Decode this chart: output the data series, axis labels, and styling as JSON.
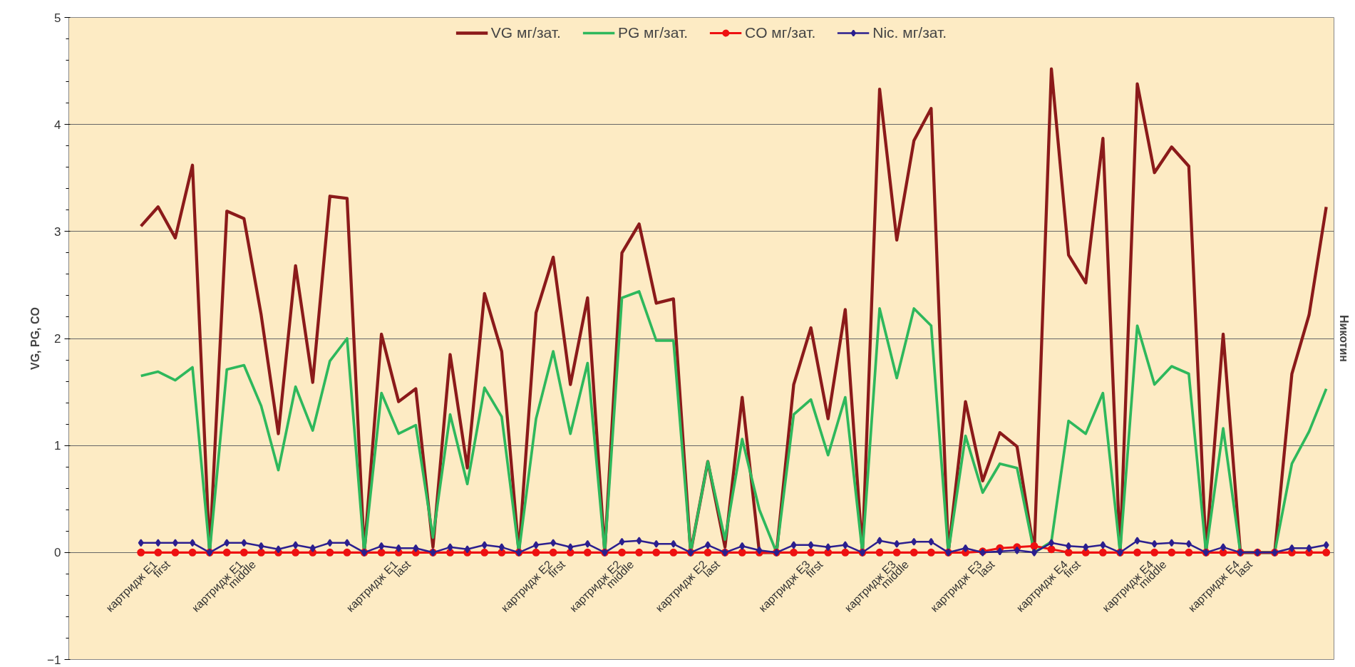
{
  "chart_data": {
    "type": "line",
    "ylabel": "VG, PG, CO",
    "y2label": "Никотин",
    "categories": [
      "картридж E1\nfirst",
      null,
      null,
      null,
      null,
      "картридж E1\nmiddle",
      null,
      null,
      null,
      null,
      null,
      null,
      null,
      null,
      "картридж E1\nlast",
      null,
      null,
      null,
      null,
      null,
      null,
      null,
      null,
      "картридж E2\nfirst",
      null,
      null,
      null,
      "картридж E2\nmiddle",
      null,
      null,
      null,
      null,
      "картридж E2\nlast",
      null,
      null,
      null,
      null,
      null,
      "картридж E3\nfirst",
      null,
      null,
      null,
      null,
      "картридж E3\nmiddle",
      null,
      null,
      null,
      null,
      "картридж E3\nlast",
      null,
      null,
      null,
      null,
      "картридж E4\nfirst",
      null,
      null,
      null,
      null,
      "картридж E4\nmiddle",
      null,
      null,
      null,
      null,
      "картридж E4\nlast",
      null,
      null,
      null,
      null,
      null,
      null
    ],
    "series": [
      {
        "name": "VG мг/зат.",
        "color": "#8b1a1a",
        "values": [
          3.05,
          3.23,
          2.94,
          3.62,
          0,
          3.19,
          3.12,
          2.22,
          1.11,
          2.68,
          1.59,
          3.33,
          3.31,
          0,
          2.04,
          1.41,
          1.53,
          0.05,
          1.85,
          0.79,
          2.42,
          1.88,
          0,
          2.24,
          2.76,
          1.57,
          2.38,
          0,
          2.8,
          3.07,
          2.33,
          2.37,
          0,
          0.85,
          0.05,
          1.45,
          0,
          0,
          1.57,
          2.1,
          1.25,
          2.27,
          0,
          4.33,
          2.92,
          3.85,
          4.15,
          0,
          1.41,
          0.67,
          1.12,
          0.99,
          0,
          4.52,
          2.78,
          2.52,
          3.87,
          0,
          4.38,
          3.55,
          3.79,
          3.61,
          0,
          2.04,
          0,
          0,
          0,
          1.67,
          2.22,
          3.23
        ]
      },
      {
        "name": "PG мг/зат.",
        "color": "#2eb85c",
        "values": [
          1.65,
          1.69,
          1.61,
          1.73,
          0,
          1.71,
          1.75,
          1.37,
          0.77,
          1.55,
          1.14,
          1.79,
          2.0,
          0,
          1.49,
          1.11,
          1.19,
          0.14,
          1.29,
          0.64,
          1.54,
          1.27,
          0,
          1.25,
          1.88,
          1.11,
          1.77,
          0,
          2.38,
          2.44,
          1.98,
          1.98,
          0,
          0.85,
          0.12,
          1.06,
          0.4,
          0,
          1.29,
          1.43,
          0.91,
          1.45,
          0,
          2.28,
          1.63,
          2.28,
          2.12,
          0,
          1.09,
          0.56,
          0.83,
          0.79,
          0,
          0.1,
          1.23,
          1.11,
          1.49,
          0,
          2.12,
          1.57,
          1.74,
          1.67,
          0,
          1.16,
          0,
          0,
          0,
          0.83,
          1.13,
          1.53
        ]
      },
      {
        "name": "CO мг/зат.",
        "color": "#ee1111",
        "marker": "circle",
        "values": [
          0,
          0,
          0,
          0,
          0,
          0,
          0,
          0,
          0,
          0,
          0,
          0,
          0,
          0,
          0,
          0,
          0,
          0,
          0,
          0,
          0,
          0,
          0,
          0,
          0,
          0,
          0,
          0,
          0,
          0,
          0,
          0,
          0,
          0,
          0,
          0,
          0,
          0,
          0,
          0,
          0,
          0,
          0,
          0,
          0,
          0,
          0,
          0,
          0,
          0.01,
          0.04,
          0.05,
          0.06,
          0.03,
          0,
          0,
          0,
          0,
          0,
          0,
          0,
          0,
          0,
          0,
          0,
          0,
          0,
          0,
          0,
          0
        ]
      },
      {
        "name": "Nic. мг/зат.",
        "color": "#2b1f8f",
        "marker": "diamond",
        "values": [
          0.09,
          0.09,
          0.09,
          0.09,
          0,
          0.09,
          0.09,
          0.06,
          0.03,
          0.07,
          0.04,
          0.09,
          0.09,
          0,
          0.06,
          0.04,
          0.04,
          0,
          0.05,
          0.03,
          0.07,
          0.05,
          0,
          0.07,
          0.09,
          0.05,
          0.08,
          0,
          0.1,
          0.11,
          0.08,
          0.08,
          0,
          0.07,
          0,
          0.06,
          0.02,
          0,
          0.07,
          0.07,
          0.05,
          0.07,
          0,
          0.11,
          0.08,
          0.1,
          0.1,
          0,
          0.04,
          0,
          0.01,
          0.02,
          0,
          0.09,
          0.06,
          0.05,
          0.07,
          0,
          0.11,
          0.08,
          0.09,
          0.08,
          0,
          0.05,
          0,
          0,
          0,
          0.04,
          0.04,
          0.07
        ]
      }
    ],
    "ylim": [
      -1,
      5
    ],
    "yticks": [
      -1,
      0,
      1,
      2,
      3,
      4,
      5
    ],
    "grid": "y",
    "legend": "top",
    "line_style": "solid"
  }
}
